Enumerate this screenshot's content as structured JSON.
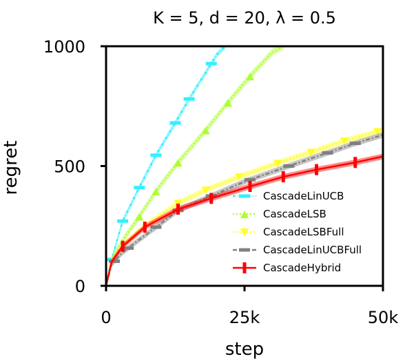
{
  "chart_data": {
    "type": "line",
    "title": "K = 5, d = 20, λ = 0.5",
    "xlabel": "step",
    "ylabel": "regret",
    "xlim": [
      0,
      50000
    ],
    "ylim": [
      0,
      1000
    ],
    "x_ticks": [
      0,
      25000,
      50000
    ],
    "x_tick_labels": [
      "0",
      "25k",
      "50k"
    ],
    "y_ticks": [
      0,
      500,
      1000
    ],
    "y_tick_labels": [
      "0",
      "500",
      "1000"
    ],
    "grid": false,
    "legend_position": "lower-right",
    "series": [
      {
        "name": "CascadeLinUCB",
        "color": "#33f0ff",
        "dash": "4,3,1,3",
        "x": [
          0,
          500,
          1000,
          3000,
          6000,
          9000,
          12500,
          15000,
          18000,
          20000,
          21500
        ],
        "y": [
          0,
          60,
          110,
          270,
          410,
          545,
          680,
          780,
          890,
          965,
          1000
        ],
        "band": 12,
        "marker_x": [
          1000,
          3000,
          6000,
          9000,
          12500,
          15000,
          19000
        ]
      },
      {
        "name": "CascadeLSB",
        "color": "#adff2f",
        "dash": "2,3",
        "x": [
          0,
          1000,
          3000,
          6000,
          9000,
          13000,
          18000,
          22000,
          26000,
          30000,
          32000
        ],
        "y": [
          0,
          110,
          190,
          290,
          395,
          515,
          650,
          765,
          875,
          975,
          1000
        ],
        "band": 14,
        "marker_x": [
          6000,
          9000,
          13000,
          18000,
          22000,
          26000
        ]
      },
      {
        "name": "CascadeLSBFull",
        "color": "#ffff22",
        "dash": "2,3",
        "x": [
          0,
          1000,
          3000,
          7000,
          13000,
          18000,
          24000,
          32000,
          38000,
          43000,
          50000
        ],
        "y": [
          0,
          100,
          170,
          250,
          345,
          400,
          455,
          520,
          565,
          605,
          650
        ],
        "band": 12,
        "marker_x": [
          13000,
          18000,
          24000,
          31000,
          37000,
          43000,
          49000
        ]
      },
      {
        "name": "CascadeLinUCBFull",
        "color": "#808080",
        "dash": "6,3,2,3",
        "x": [
          0,
          1000,
          3000,
          9000,
          13000,
          19000,
          25000,
          33000,
          40000,
          45000,
          50000
        ],
        "y": [
          0,
          90,
          140,
          245,
          315,
          375,
          435,
          500,
          555,
          595,
          630
        ],
        "band": 12,
        "marker_x": [
          1500,
          4000,
          9000,
          13000,
          19000,
          26000,
          33000,
          40000,
          45000
        ]
      },
      {
        "name": "CascadeHybrid",
        "color": "#ff0000",
        "dash": "",
        "x": [
          0,
          1000,
          3000,
          7000,
          13000,
          19000,
          26000,
          32000,
          38000,
          45000,
          50000
        ],
        "y": [
          0,
          100,
          165,
          245,
          320,
          365,
          415,
          455,
          485,
          515,
          540
        ],
        "band": 12,
        "marker_x": [
          3000,
          7000,
          13000,
          19000,
          26000,
          32000,
          38000,
          45000
        ]
      }
    ]
  }
}
